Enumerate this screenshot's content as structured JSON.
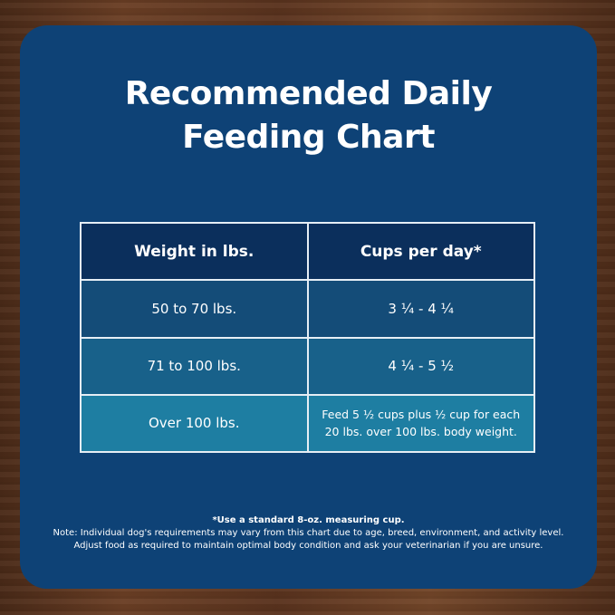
{
  "title_lines": [
    "Recommended Daily",
    "Feeding Chart"
  ],
  "table": {
    "headers": [
      "Weight in lbs.",
      "Cups per day*"
    ],
    "rows": [
      [
        "50 to 70 lbs.",
        "3 ¼ - 4 ¼"
      ],
      [
        "71 to 100 lbs.",
        "4 ¼ - 5 ½"
      ],
      [
        "Over 100 lbs.",
        "Feed 5 ½ cups plus ½ cup for each 20 lbs. over 100 lbs. body weight."
      ]
    ]
  },
  "notes": [
    "*Use a standard 8-oz. measuring cup.",
    "Note: Individual dog's requirements may vary from this chart due to age, breed, environment, and activity level.",
    "Adjust food as required to maintain optimal body condition and ask your veterinarian if you are unsure."
  ],
  "colors": {
    "panel": "#0e4276",
    "header": "#0b2f5c",
    "row1": "#144c78",
    "row2": "#18618a",
    "row3": "#1e7ea2"
  }
}
